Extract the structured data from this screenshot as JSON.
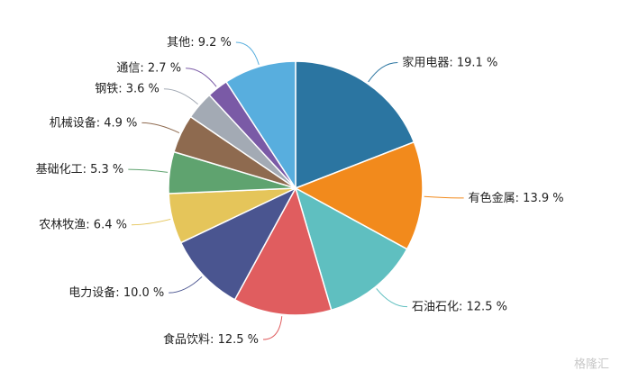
{
  "chart_data": {
    "type": "pie",
    "categories": [
      "家用电器",
      "有色金属",
      "石油石化",
      "食品饮料",
      "电力设备",
      "农林牧渔",
      "基础化工",
      "机械设备",
      "钢铁",
      "通信",
      "其他"
    ],
    "values": [
      19.1,
      13.9,
      12.5,
      12.5,
      10.0,
      6.4,
      5.3,
      4.9,
      3.6,
      2.7,
      9.2
    ],
    "value_labels": [
      "19.1 %",
      "13.9 %",
      "12.5 %",
      "12.5 %",
      "10.0 %",
      "6.4 %",
      "5.3 %",
      "4.9 %",
      "3.6 %",
      "2.7 %",
      "9.2 %"
    ],
    "label_separator": ": ",
    "colors": [
      "#2b75a1",
      "#f28a1c",
      "#5fbfc0",
      "#e05d5f",
      "#4a5590",
      "#e5c55a",
      "#5fa36f",
      "#8e6a4f",
      "#a3aab4",
      "#7a5aa6",
      "#58aede"
    ],
    "watermark": "格隆汇"
  }
}
